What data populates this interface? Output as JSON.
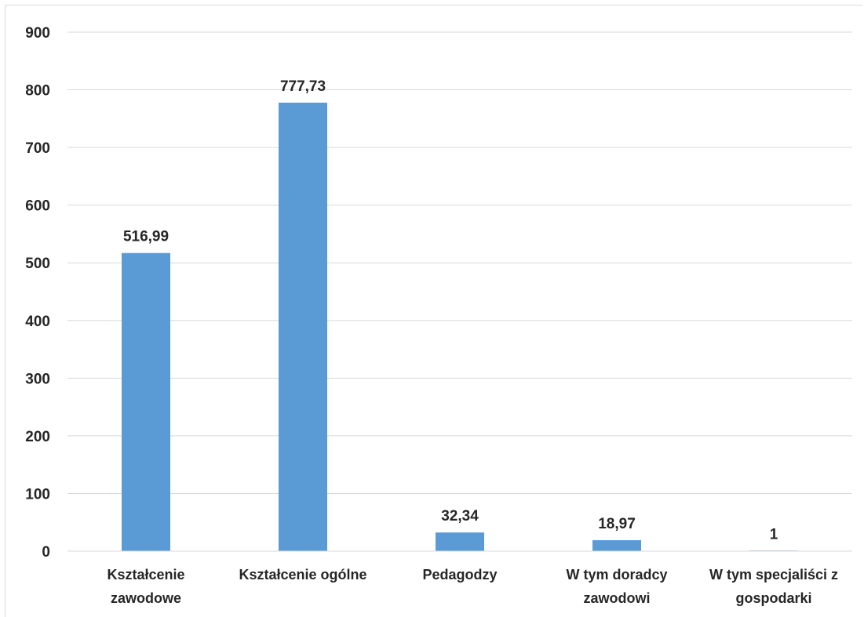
{
  "chart_data": {
    "type": "bar",
    "categories": [
      [
        "Kształcenie",
        "zawodowe"
      ],
      [
        "Kształcenie ogólne"
      ],
      [
        "Pedagodzy"
      ],
      [
        "W tym doradcy",
        "zawodowi"
      ],
      [
        "W tym specjaliści z",
        "gospodarki"
      ]
    ],
    "values": [
      516.99,
      777.73,
      32.34,
      18.97,
      1
    ],
    "data_labels": [
      "516,99",
      "777,73",
      "32,34",
      "18,97",
      "1"
    ],
    "yticks": [
      "0",
      "100",
      "200",
      "300",
      "400",
      "500",
      "600",
      "700",
      "800",
      "900"
    ],
    "ylim": [
      0,
      900
    ],
    "grid": true,
    "legend": "none",
    "bar_color": "#5b9bd5",
    "grid_color": "#d9d9d9"
  }
}
